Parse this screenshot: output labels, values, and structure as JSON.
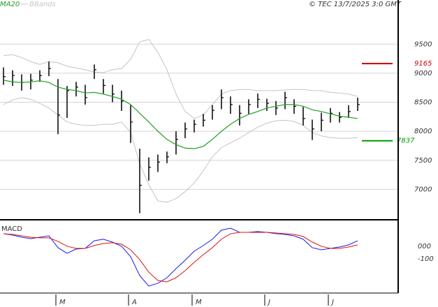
{
  "chart_data": [
    {
      "type": "ohlc",
      "source": "© TEC 13/7/2025 3:0 GMT",
      "high": [
        9100,
        9050,
        8980,
        8990,
        9050,
        9200,
        8900,
        8780,
        8850,
        8800,
        9150,
        8900,
        8800,
        8700,
        8450,
        7700,
        7550,
        7600,
        7650,
        8000,
        8150,
        8200,
        8300,
        8450,
        8720,
        8600,
        8450,
        8550,
        8650,
        8560,
        8520,
        8680,
        8550,
        8420,
        8200,
        8320,
        8400,
        8330,
        8450,
        8580
      ],
      "low": [
        8800,
        8780,
        8700,
        8720,
        8850,
        8950,
        7950,
        8230,
        8600,
        8460,
        8900,
        8650,
        8500,
        8350,
        7800,
        6590,
        7150,
        7300,
        7450,
        7600,
        7880,
        7980,
        8080,
        8200,
        8380,
        8300,
        8100,
        8300,
        8400,
        8350,
        8280,
        8380,
        8300,
        8100,
        7850,
        8000,
        8150,
        8150,
        8230,
        8350
      ],
      "close": [
        8940,
        8960,
        8840,
        8880,
        8960,
        9080,
        8280,
        8700,
        8760,
        8580,
        9060,
        8790,
        8640,
        8520,
        8160,
        7070,
        7380,
        7470,
        7560,
        7860,
        8040,
        8120,
        8190,
        8360,
        8580,
        8460,
        8310,
        8460,
        8550,
        8480,
        8400,
        8580,
        8430,
        8220,
        8040,
        8190,
        8310,
        8240,
        8340,
        8460
      ],
      "series": [
        {
          "name": "MA20",
          "color": "#22a022",
          "values": [
            8880,
            8850,
            8840,
            8850,
            8870,
            8840,
            8760,
            8720,
            8700,
            8660,
            8670,
            8640,
            8600,
            8550,
            8460,
            8310,
            8160,
            8000,
            7860,
            7770,
            7710,
            7700,
            7740,
            7860,
            8000,
            8120,
            8220,
            8290,
            8340,
            8400,
            8430,
            8460,
            8460,
            8430,
            8370,
            8340,
            8300,
            8260,
            8240,
            8220
          ]
        },
        {
          "name": "BBands",
          "color": "#c4c4c4",
          "upper": [
            9300,
            9320,
            9270,
            9200,
            9150,
            9200,
            9180,
            9120,
            9090,
            9060,
            9020,
            9010,
            9060,
            9080,
            9240,
            9540,
            9580,
            9360,
            9060,
            8640,
            8340,
            8220,
            8280,
            8460,
            8640,
            8700,
            8720,
            8720,
            8700,
            8700,
            8700,
            8710,
            8720,
            8720,
            8700,
            8700,
            8670,
            8660,
            8640,
            8600
          ],
          "lower": [
            8460,
            8540,
            8580,
            8550,
            8480,
            8400,
            8280,
            8160,
            8120,
            8100,
            8100,
            8120,
            8120,
            8160,
            7980,
            7440,
            7080,
            6800,
            6780,
            6840,
            6960,
            7110,
            7320,
            7560,
            7720,
            7800,
            7880,
            7980,
            8070,
            8140,
            8180,
            8190,
            8170,
            8100,
            7980,
            7920,
            7890,
            7880,
            7880,
            7890
          ]
        }
      ],
      "levels": [
        {
          "value": 9165,
          "color": "#cc0000"
        },
        {
          "value": 7837,
          "color": "#009900"
        }
      ],
      "ylim": [
        6500,
        10260
      ],
      "yticks": [
        9500,
        9000,
        8500,
        8000,
        7500,
        7000
      ],
      "grid": true
    },
    {
      "type": "line",
      "title": "MACD",
      "categories": [
        null,
        null,
        null,
        null,
        null,
        null,
        "M",
        null,
        null,
        null,
        null,
        null,
        null,
        null,
        "A",
        null,
        null,
        null,
        null,
        null,
        null,
        "M",
        null,
        null,
        null,
        null,
        null,
        null,
        null,
        "J",
        null,
        null,
        null,
        null,
        null,
        null,
        "J",
        null,
        null,
        null
      ],
      "series": [
        {
          "color": "#1a1aee",
          "values": [
            100,
            89,
            72,
            61,
            72,
            83,
            -11,
            -56,
            -22,
            -17,
            44,
            56,
            33,
            0,
            -83,
            -233,
            -317,
            -294,
            -250,
            -178,
            -111,
            -39,
            6,
            56,
            128,
            144,
            111,
            111,
            117,
            111,
            100,
            94,
            83,
            56,
            -11,
            -28,
            -17,
            -6,
            11,
            44
          ]
        },
        {
          "color": "#dd1111",
          "values": [
            100,
            94,
            83,
            72,
            67,
            67,
            39,
            0,
            -17,
            -17,
            6,
            22,
            28,
            17,
            -28,
            -106,
            -206,
            -272,
            -283,
            -250,
            -194,
            -128,
            -67,
            -11,
            56,
            100,
            111,
            111,
            111,
            111,
            106,
            100,
            94,
            78,
            33,
            0,
            -17,
            -17,
            -6,
            11
          ]
        }
      ],
      "ylim": [
        -372,
        194
      ],
      "yticks": [
        {
          "value": 0,
          "label": "000"
        },
        -100
      ]
    }
  ]
}
